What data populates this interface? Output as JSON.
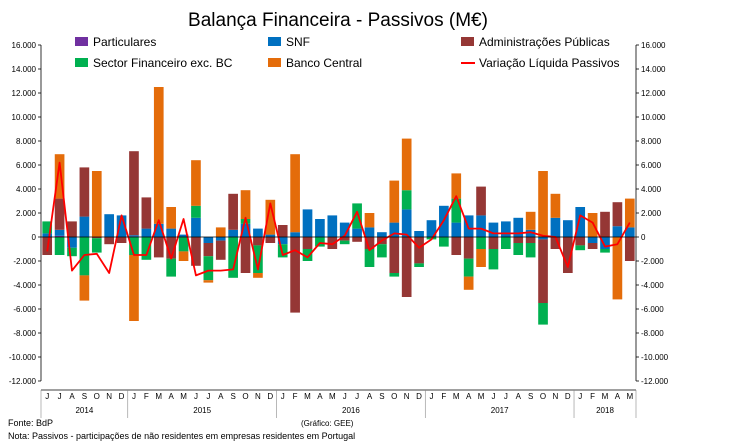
{
  "chart_data": {
    "type": "bar",
    "stacked": true,
    "title": "Balança Financeira - Passivos (M€)",
    "ylim": [
      -12000,
      16000
    ],
    "yticks": [
      16000,
      14000,
      12000,
      10000,
      8000,
      6000,
      4000,
      2000,
      0,
      -2000,
      -4000,
      -6000,
      -8000,
      -10000,
      -12000
    ],
    "left_tick_labels": [
      "16.000",
      "14.000",
      "12.000",
      "10.000",
      "8.000",
      "6.000",
      "4.000",
      "2.000",
      "0",
      "-2.000",
      "-4.000",
      "-6.000",
      "-8.000",
      "-10.000",
      "-12.000"
    ],
    "right_tick_labels": [
      "16.000",
      "14.000",
      "12.000",
      "10.000",
      "8.000",
      "6.000",
      "4.000",
      "2.000",
      "0",
      "-2.000",
      "-4.000",
      "-6.000",
      "-8.000",
      "-10.000",
      "-12.000"
    ],
    "grid": false,
    "categories": [
      "J",
      "J",
      "A",
      "S",
      "O",
      "N",
      "D",
      "J",
      "F",
      "M",
      "A",
      "M",
      "J",
      "J",
      "A",
      "S",
      "O",
      "N",
      "D",
      "J",
      "F",
      "M",
      "A",
      "M",
      "J",
      "J",
      "A",
      "S",
      "O",
      "N",
      "D",
      "J",
      "F",
      "M",
      "A",
      "M",
      "J",
      "J",
      "A",
      "S",
      "O",
      "N",
      "D",
      "J",
      "F",
      "M",
      "A",
      "M"
    ],
    "years": [
      {
        "label": "2014",
        "start": 0,
        "end": 6
      },
      {
        "label": "2015",
        "start": 7,
        "end": 18
      },
      {
        "label": "2016",
        "start": 19,
        "end": 30
      },
      {
        "label": "2017",
        "start": 31,
        "end": 42
      },
      {
        "label": "2018",
        "start": 43,
        "end": 47
      }
    ],
    "legend_position": "top",
    "series": [
      {
        "name": "Particulares",
        "color": "#7030A0",
        "kind": "bar",
        "values": [
          0,
          100,
          0,
          0,
          0,
          0,
          0,
          50,
          0,
          0,
          0,
          0,
          0,
          0,
          0,
          0,
          0,
          0,
          0,
          0,
          0,
          0,
          0,
          0,
          0,
          0,
          0,
          0,
          0,
          0,
          0,
          0,
          0,
          0,
          0,
          0,
          0,
          0,
          0,
          0,
          0,
          0,
          0,
          0,
          0,
          0,
          0,
          0
        ]
      },
      {
        "name": "SNF",
        "color": "#0070C0",
        "kind": "bar",
        "values": [
          300,
          500,
          -900,
          1700,
          0,
          1900,
          1800,
          100,
          700,
          1100,
          700,
          200,
          1600,
          -500,
          -300,
          600,
          1100,
          700,
          200,
          -600,
          400,
          2300,
          1500,
          1800,
          1200,
          700,
          800,
          400,
          1200,
          2300,
          500,
          1400,
          2600,
          1200,
          1800,
          1800,
          1200,
          1300,
          1600,
          600,
          -200,
          1600,
          1400,
          2500,
          -500,
          -1000,
          900,
          800
        ]
      },
      {
        "name": "Administrações Públicas",
        "color": "#953735",
        "kind": "bar",
        "values": [
          -1500,
          2600,
          1300,
          4100,
          -100,
          -600,
          -500,
          7000,
          2600,
          -1700,
          -1800,
          0,
          -2400,
          -1100,
          -1600,
          3000,
          -3000,
          -700,
          -500,
          1000,
          -6300,
          -1000,
          0,
          -1000,
          -300,
          -400,
          -1000,
          -600,
          -3000,
          -5000,
          -2200,
          0,
          0,
          -1500,
          -1800,
          2400,
          -1000,
          0,
          -500,
          -500,
          -5300,
          -1000,
          -3000,
          -700,
          -500,
          2100,
          2000,
          -2000
        ]
      },
      {
        "name": "Sector Financeiro exc. BC",
        "color": "#00B050",
        "kind": "bar",
        "values": [
          1000,
          -1500,
          -700,
          -3200,
          -1200,
          0,
          0,
          -1500,
          -1900,
          0,
          -1500,
          -1200,
          1000,
          -2000,
          0,
          -3400,
          400,
          -2300,
          0,
          -1100,
          0,
          -1000,
          -800,
          0,
          -300,
          2100,
          -1500,
          -1100,
          -300,
          1600,
          -300,
          -200,
          -800,
          2000,
          -1500,
          -1000,
          -1700,
          -1000,
          -1000,
          -1200,
          -1800,
          0,
          0,
          -400,
          0,
          -300,
          0,
          0
        ]
      },
      {
        "name": "Banco Central",
        "color": "#E46C0A",
        "kind": "bar",
        "values": [
          0,
          3700,
          0,
          -2100,
          5500,
          0,
          0,
          -5500,
          0,
          11400,
          1800,
          -800,
          3800,
          -200,
          800,
          0,
          2400,
          -400,
          2900,
          0,
          6500,
          0,
          0,
          0,
          0,
          0,
          1200,
          0,
          3500,
          4300,
          0,
          0,
          0,
          2100,
          -1100,
          -1500,
          0,
          0,
          0,
          1500,
          5500,
          2000,
          0,
          0,
          2000,
          0,
          -5200,
          2400
        ]
      },
      {
        "name": "Variação Líquida Passivos",
        "color": "#FF0000",
        "kind": "line",
        "values": [
          -1200,
          6200,
          -2800,
          -1500,
          -1400,
          -3000,
          1800,
          -1500,
          -1500,
          1400,
          -1800,
          1500,
          -3200,
          -2800,
          -2800,
          -2700,
          1600,
          -2700,
          2800,
          -1500,
          -1100,
          -1700,
          -500,
          -600,
          100,
          2100,
          -1100,
          -300,
          300,
          200,
          -900,
          -200,
          1400,
          3400,
          700,
          700,
          300,
          300,
          300,
          400,
          100,
          0,
          -2500,
          1800,
          1200,
          -800,
          -600,
          1200
        ]
      }
    ]
  },
  "footer": {
    "source": "Fonte: BdP",
    "graph_credit": "(Gráfico: GEE)",
    "note": "Nota: Passivos - participações de não residentes em empresas residentes em Portugal"
  }
}
